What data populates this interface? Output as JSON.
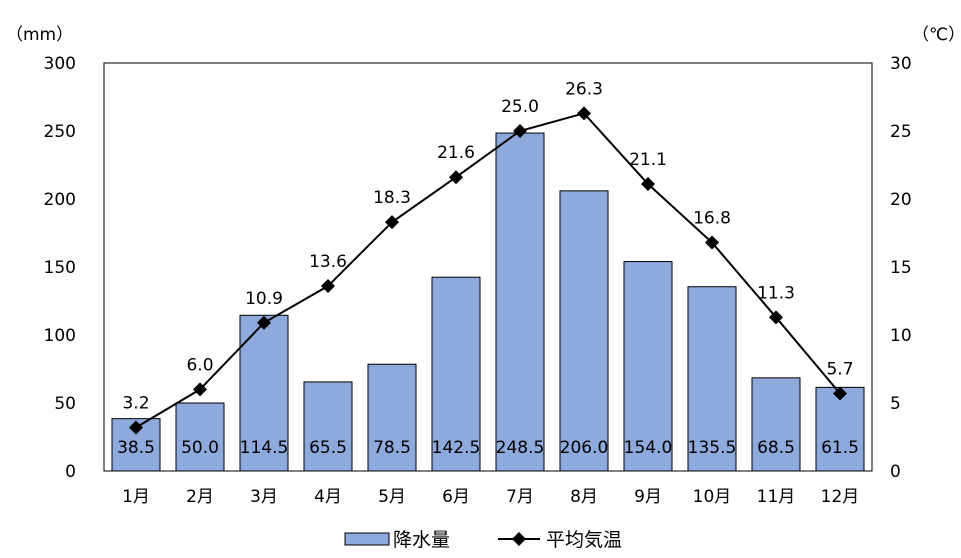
{
  "chart_data": {
    "type": "bar+line",
    "categories": [
      "1月",
      "2月",
      "3月",
      "4月",
      "5月",
      "6月",
      "7月",
      "8月",
      "9月",
      "10月",
      "11月",
      "12月"
    ],
    "series": [
      {
        "name": "降水量",
        "type": "bar",
        "axis": "left",
        "values": [
          38.5,
          50.0,
          114.5,
          65.5,
          78.5,
          142.5,
          248.5,
          206.0,
          154.0,
          135.5,
          68.5,
          61.5
        ],
        "labels": [
          "38.5",
          "50.0",
          "114.5",
          "65.5",
          "78.5",
          "142.5",
          "248.5",
          "206.0",
          "154.0",
          "135.5",
          "68.5",
          "61.5"
        ],
        "color": "#8EA9DB",
        "stroke": "#000000"
      },
      {
        "name": "平均気温",
        "type": "line",
        "axis": "right",
        "values": [
          3.2,
          6.0,
          10.9,
          13.6,
          18.3,
          21.6,
          25.0,
          26.3,
          21.1,
          16.8,
          11.3,
          5.7
        ],
        "labels": [
          "3.2",
          "6.0",
          "10.9",
          "13.6",
          "18.3",
          "21.6",
          "25.0",
          "26.3",
          "21.1",
          "16.8",
          "11.3",
          "5.7"
        ],
        "color": "#000000",
        "marker": "diamond"
      }
    ],
    "y_left": {
      "unit": "（mm）",
      "min": 0,
      "max": 300,
      "ticks": [
        "0",
        "50",
        "100",
        "150",
        "200",
        "250",
        "300"
      ]
    },
    "y_right": {
      "unit": "（℃）",
      "min": 0,
      "max": 30,
      "ticks": [
        "0",
        "5",
        "10",
        "15",
        "20",
        "25",
        "30"
      ]
    },
    "grid": false,
    "legend": "bottom-center"
  }
}
